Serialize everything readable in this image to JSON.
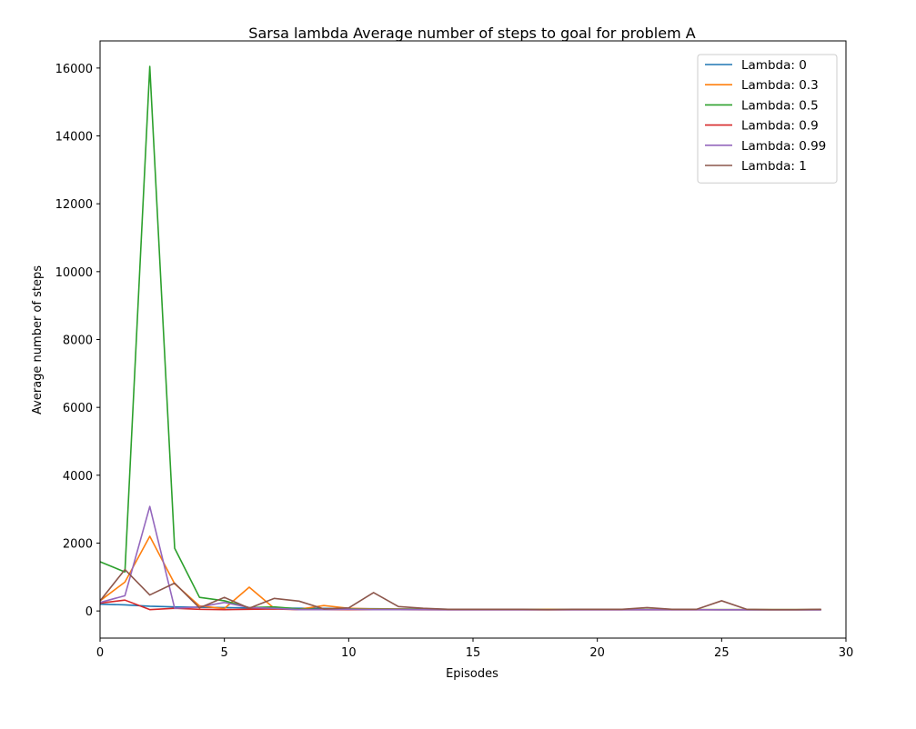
{
  "chart_data": {
    "type": "line",
    "title": "Sarsa lambda Average number of steps to goal for problem A",
    "xlabel": "Episodes",
    "ylabel": "Average number of steps",
    "xlim": [
      0,
      30
    ],
    "ylim": [
      -800,
      16800
    ],
    "xticks": [
      0,
      5,
      10,
      15,
      20,
      25,
      30
    ],
    "yticks": [
      0,
      2000,
      4000,
      6000,
      8000,
      10000,
      12000,
      14000,
      16000
    ],
    "grid": false,
    "legend_position": "top-right",
    "x": [
      0,
      1,
      2,
      3,
      4,
      5,
      6,
      7,
      8,
      9,
      10,
      11,
      12,
      13,
      14,
      15,
      16,
      17,
      18,
      19,
      20,
      21,
      22,
      23,
      24,
      25,
      26,
      27,
      28,
      29
    ],
    "series": [
      {
        "name": "Lambda: 0",
        "color": "#1f77b4",
        "values": [
          200,
          180,
          140,
          120,
          110,
          100,
          90,
          85,
          80,
          75,
          70,
          65,
          60,
          55,
          50,
          48,
          46,
          44,
          42,
          40,
          40,
          40,
          38,
          38,
          37,
          36,
          36,
          35,
          35,
          35
        ]
      },
      {
        "name": "Lambda: 0.3",
        "color": "#ff7f0e",
        "values": [
          300,
          850,
          2200,
          800,
          150,
          70,
          700,
          80,
          50,
          160,
          80,
          60,
          55,
          50,
          45,
          40,
          40,
          40,
          50,
          40,
          40,
          40,
          40,
          40,
          40,
          40,
          40,
          40,
          40,
          40
        ]
      },
      {
        "name": "Lambda: 0.5",
        "color": "#2ca02c",
        "values": [
          1450,
          1150,
          16050,
          1850,
          400,
          300,
          100,
          120,
          60,
          50,
          60,
          50,
          45,
          45,
          40,
          40,
          40,
          40,
          40,
          40,
          40,
          40,
          40,
          40,
          40,
          40,
          40,
          40,
          40,
          40
        ]
      },
      {
        "name": "Lambda: 0.9",
        "color": "#d62728",
        "values": [
          230,
          320,
          40,
          80,
          50,
          40,
          50,
          60,
          40,
          40,
          40,
          40,
          40,
          35,
          35,
          35,
          35,
          35,
          35,
          35,
          35,
          35,
          35,
          35,
          35,
          35,
          35,
          35,
          35,
          35
        ]
      },
      {
        "name": "Lambda: 0.99",
        "color": "#9467bd",
        "values": [
          250,
          450,
          3080,
          80,
          120,
          250,
          100,
          80,
          40,
          40,
          50,
          40,
          40,
          40,
          35,
          35,
          35,
          35,
          35,
          35,
          35,
          35,
          35,
          35,
          35,
          35,
          35,
          35,
          35,
          35
        ]
      },
      {
        "name": "Lambda: 1",
        "color": "#8c564b",
        "values": [
          300,
          1220,
          470,
          820,
          90,
          400,
          80,
          370,
          290,
          60,
          90,
          540,
          130,
          80,
          50,
          50,
          50,
          50,
          40,
          50,
          50,
          50,
          100,
          50,
          50,
          300,
          50,
          40,
          40,
          50
        ]
      }
    ]
  }
}
